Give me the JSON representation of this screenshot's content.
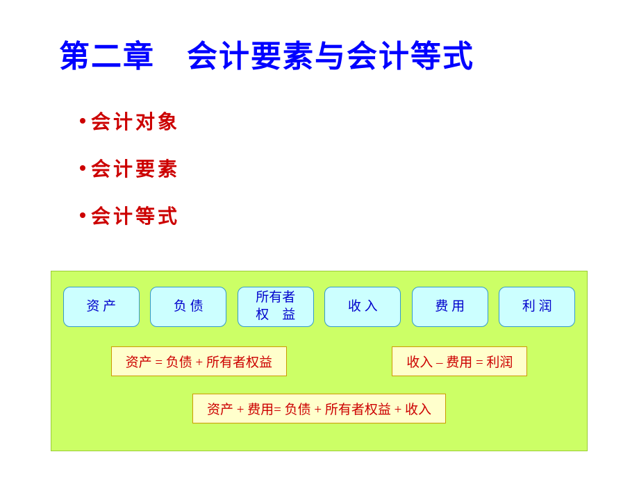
{
  "title": "第二章　会计要素与会计等式",
  "bullets": [
    "会计对象",
    "会计要素",
    "会计等式"
  ],
  "elements": [
    "资 产",
    "负 债",
    "所有者\n权　益",
    "收 入",
    "费 用",
    "利 润"
  ],
  "equations": {
    "eq1": "资产 = 负债 + 所有者权益",
    "eq2": "收入 – 费用 = 利润",
    "eq3": "资产 + 费用= 负债 + 所有者权益 + 收入"
  },
  "colors": {
    "title": "#0000ff",
    "bullet": "#cc0000",
    "panel_bg": "#ccff66",
    "element_bg": "#ccffff",
    "element_text": "#0000cc",
    "eq_bg": "#ffffcc",
    "eq_text": "#cc0000"
  }
}
